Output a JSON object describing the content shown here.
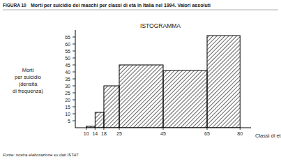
{
  "chart_data": {
    "type": "histogram",
    "title": "Morti per suicidio dei maschi per classi di età in Italia nel 1994. Valori assoluti",
    "subtitle": "ISTOGRAMMA",
    "annotations": [
      "FIGURA 10",
      "Fonte: nostra elaborazione su dati ISTAT."
    ],
    "xlabel": "Classi di età",
    "ylabel": [
      "Morti",
      "per suicidio",
      "(densità",
      "di frequenza)"
    ],
    "bins": [
      10,
      14,
      18,
      25,
      45,
      65,
      80
    ],
    "values": [
      1,
      11,
      30,
      45,
      41,
      66
    ],
    "color": "#000000",
    "xlim": [
      5,
      85
    ],
    "xticks": [
      10,
      14,
      18,
      25,
      45,
      65,
      80
    ],
    "ylim": [
      0,
      70
    ],
    "yticks": [
      5,
      10,
      15,
      20,
      25,
      30,
      35,
      40,
      45,
      50,
      55,
      60,
      65
    ],
    "grid": false
  }
}
